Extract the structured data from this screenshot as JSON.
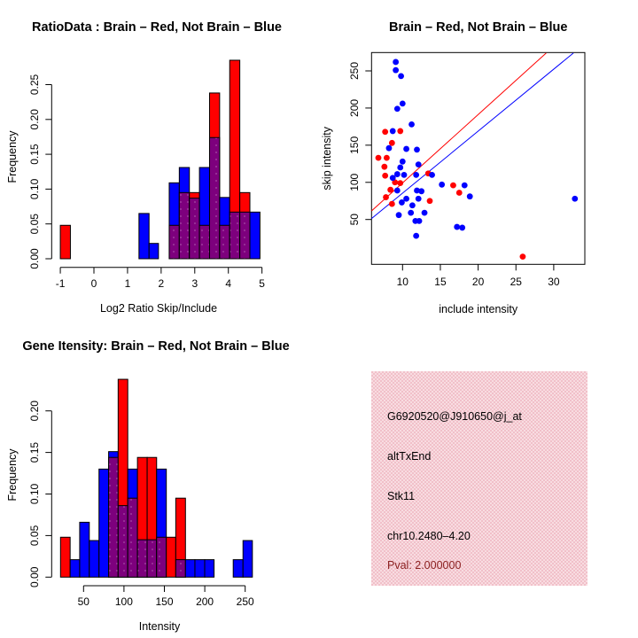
{
  "colors": {
    "red": "#ff0000",
    "blue": "#0000ff",
    "purple": "#7d007d",
    "purple_dot": "#a64ca6",
    "dark_red": "#8b2020",
    "black": "#000000",
    "pink_bg": "#f1c0c9",
    "pink_bg_light": "#f8dce1"
  },
  "chart_data": [
    {
      "id": "ratio_hist",
      "type": "bar",
      "title": "RatioData : Brain – Red, Not Brain – Blue",
      "xlabel": "Log2 Ratio Skip/Include",
      "ylabel": "Frequency",
      "xlim": [
        -1.27,
        5.25
      ],
      "ylim": [
        0,
        0.286
      ],
      "x_ticks": [
        {
          "v": -1,
          "label": "-1"
        },
        {
          "v": 0,
          "label": "0"
        },
        {
          "v": 1,
          "label": "1"
        },
        {
          "v": 2,
          "label": "2"
        },
        {
          "v": 3,
          "label": "3"
        },
        {
          "v": 4,
          "label": "4"
        },
        {
          "v": 5,
          "label": "5"
        }
      ],
      "y_ticks": [
        {
          "v": 0,
          "label": "0.00"
        },
        {
          "v": 0.05,
          "label": "0.05"
        },
        {
          "v": 0.1,
          "label": "0.10"
        },
        {
          "v": 0.15,
          "label": "0.15"
        },
        {
          "v": 0.2,
          "label": "0.20"
        },
        {
          "v": 0.25,
          "label": "0.25"
        }
      ],
      "series_legend": {
        "red": "Brain",
        "blue": "Not Brain",
        "purple": "overlap"
      },
      "bars": [
        {
          "x0": -1.0,
          "x1": -0.7,
          "series": "red",
          "height": 0.048,
          "overlap": 0
        },
        {
          "x0": 1.34,
          "x1": 1.64,
          "series": "blue",
          "height": 0.065,
          "overlap": 0
        },
        {
          "x0": 1.64,
          "x1": 1.92,
          "series": "blue",
          "height": 0.022,
          "overlap": 0
        },
        {
          "x0": 2.24,
          "x1": 2.54,
          "series": "blue",
          "height": 0.109,
          "overlap": 0.048
        },
        {
          "x0": 2.54,
          "x1": 2.84,
          "series": "blue",
          "height": 0.131,
          "overlap": 0.095
        },
        {
          "x0": 2.84,
          "x1": 3.14,
          "series": "red",
          "height": 0.095,
          "overlap": 0.087
        },
        {
          "x0": 3.14,
          "x1": 3.44,
          "series": "blue",
          "height": 0.131,
          "overlap": 0.048
        },
        {
          "x0": 3.44,
          "x1": 3.74,
          "series": "red",
          "height": 0.238,
          "overlap": 0.174
        },
        {
          "x0": 3.74,
          "x1": 4.04,
          "series": "blue",
          "height": 0.088,
          "overlap": 0.048
        },
        {
          "x0": 4.04,
          "x1": 4.34,
          "series": "red",
          "height": 0.285,
          "overlap": 0.067
        },
        {
          "x0": 4.34,
          "x1": 4.64,
          "series": "red",
          "height": 0.095,
          "overlap": 0.067
        },
        {
          "x0": 4.64,
          "x1": 4.94,
          "series": "blue",
          "height": 0.067,
          "overlap": 0
        }
      ]
    },
    {
      "id": "scatter",
      "type": "scatter",
      "title": "Brain – Red, Not Brain – Blue",
      "xlabel": "include intensity",
      "ylabel": "skip intensity",
      "xlim": [
        5.9,
        34.1
      ],
      "ylim": [
        -11.6,
        274
      ],
      "x_ticks": [
        {
          "v": 10,
          "label": "10"
        },
        {
          "v": 15,
          "label": "15"
        },
        {
          "v": 20,
          "label": "20"
        },
        {
          "v": 25,
          "label": "25"
        },
        {
          "v": 30,
          "label": "30"
        }
      ],
      "y_ticks": [
        {
          "v": 50,
          "label": "50"
        },
        {
          "v": 100,
          "label": "100"
        },
        {
          "v": 150,
          "label": "150"
        },
        {
          "v": 200,
          "label": "200"
        },
        {
          "v": 250,
          "label": "250"
        }
      ],
      "series": [
        {
          "name": "Brain",
          "color": "red",
          "points": [
            [
              7.7,
              168
            ],
            [
              9.7,
              169
            ],
            [
              8.6,
              153
            ],
            [
              6.8,
              133
            ],
            [
              7.9,
              133
            ],
            [
              7.6,
              121
            ],
            [
              7.7,
              109
            ],
            [
              13.4,
              112
            ],
            [
              9.0,
              100
            ],
            [
              9.7,
              99
            ],
            [
              16.7,
              96
            ],
            [
              8.4,
              90
            ],
            [
              17.5,
              86
            ],
            [
              7.8,
              80
            ],
            [
              13.6,
              75
            ],
            [
              8.6,
              71
            ],
            [
              25.9,
              0
            ]
          ]
        },
        {
          "name": "Not Brain",
          "color": "blue",
          "points": [
            [
              9.1,
              262
            ],
            [
              9.1,
              251
            ],
            [
              9.8,
              243
            ],
            [
              10.0,
              206
            ],
            [
              9.3,
              199
            ],
            [
              11.2,
              178
            ],
            [
              8.7,
              169
            ],
            [
              8.2,
              146
            ],
            [
              10.5,
              145
            ],
            [
              11.9,
              144
            ],
            [
              10.0,
              128
            ],
            [
              12.1,
              124
            ],
            [
              9.7,
              120
            ],
            [
              9.3,
              111
            ],
            [
              10.2,
              110
            ],
            [
              11.8,
              110
            ],
            [
              13.9,
              110
            ],
            [
              8.7,
              106
            ],
            [
              15.2,
              97
            ],
            [
              18.2,
              96
            ],
            [
              9.3,
              89
            ],
            [
              11.9,
              89
            ],
            [
              12.5,
              88
            ],
            [
              18.9,
              81
            ],
            [
              10.5,
              78
            ],
            [
              12.1,
              78
            ],
            [
              9.9,
              73
            ],
            [
              11.3,
              69
            ],
            [
              11.1,
              59
            ],
            [
              12.9,
              59
            ],
            [
              9.5,
              56
            ],
            [
              11.7,
              48
            ],
            [
              12.2,
              48
            ],
            [
              17.2,
              40
            ],
            [
              17.9,
              39
            ],
            [
              11.8,
              28
            ],
            [
              32.8,
              78
            ]
          ]
        }
      ],
      "lines": [
        {
          "color": "red",
          "from": [
            5.9,
            61.5
          ],
          "to": [
            29.0,
            274
          ]
        },
        {
          "color": "blue",
          "from": [
            5.9,
            51.3
          ],
          "to": [
            32.6,
            274
          ]
        }
      ]
    },
    {
      "id": "gene_hist",
      "type": "bar",
      "title": "Gene Itensity: Brain – Red, Not Brain – Blue",
      "xlabel": "Intensity",
      "ylabel": "Frequency",
      "xlim": [
        10,
        280
      ],
      "ylim": [
        0,
        0.254
      ],
      "x_ticks": [
        {
          "v": 50,
          "label": "50"
        },
        {
          "v": 100,
          "label": "100"
        },
        {
          "v": 150,
          "label": "150"
        },
        {
          "v": 200,
          "label": "200"
        },
        {
          "v": 250,
          "label": "250"
        }
      ],
      "y_ticks": [
        {
          "v": 0,
          "label": "0.00"
        },
        {
          "v": 0.05,
          "label": "0.05"
        },
        {
          "v": 0.1,
          "label": "0.10"
        },
        {
          "v": 0.15,
          "label": "0.15"
        },
        {
          "v": 0.2,
          "label": "0.20"
        }
      ],
      "series_legend": {
        "red": "Brain",
        "blue": "Not Brain",
        "purple": "overlap"
      },
      "bars": [
        {
          "x0": 21.5,
          "x1": 33.4,
          "series": "red",
          "height": 0.048,
          "overlap": 0
        },
        {
          "x0": 33.4,
          "x1": 45.2,
          "series": "blue",
          "height": 0.021,
          "overlap": 0
        },
        {
          "x0": 45.2,
          "x1": 57.1,
          "series": "blue",
          "height": 0.066,
          "overlap": 0
        },
        {
          "x0": 57.1,
          "x1": 69.1,
          "series": "blue",
          "height": 0.044,
          "overlap": 0
        },
        {
          "x0": 69.1,
          "x1": 81.0,
          "series": "blue",
          "height": 0.13,
          "overlap": 0
        },
        {
          "x0": 81.0,
          "x1": 92.8,
          "series": "blue",
          "height": 0.151,
          "overlap": 0.144
        },
        {
          "x0": 92.8,
          "x1": 104.7,
          "series": "red",
          "height": 0.238,
          "overlap": 0.086
        },
        {
          "x0": 104.7,
          "x1": 116.7,
          "series": "blue",
          "height": 0.13,
          "overlap": 0.095
        },
        {
          "x0": 116.7,
          "x1": 128.7,
          "series": "red",
          "height": 0.144,
          "overlap": 0.045
        },
        {
          "x0": 128.7,
          "x1": 140.4,
          "series": "red",
          "height": 0.144,
          "overlap": 0.045
        },
        {
          "x0": 140.4,
          "x1": 152.4,
          "series": "blue",
          "height": 0.13,
          "overlap": 0.048
        },
        {
          "x0": 152.4,
          "x1": 164.1,
          "series": "red",
          "height": 0.048,
          "overlap": 0
        },
        {
          "x0": 164.1,
          "x1": 176.1,
          "series": "red",
          "height": 0.095,
          "overlap": 0.021
        },
        {
          "x0": 176.1,
          "x1": 187.8,
          "series": "blue",
          "height": 0.021,
          "overlap": 0
        },
        {
          "x0": 187.8,
          "x1": 199.9,
          "series": "blue",
          "height": 0.021,
          "overlap": 0
        },
        {
          "x0": 199.9,
          "x1": 211.5,
          "series": "blue",
          "height": 0.021,
          "overlap": 0
        },
        {
          "x0": 235.2,
          "x1": 247.3,
          "series": "blue",
          "height": 0.021,
          "overlap": 0
        },
        {
          "x0": 247.3,
          "x1": 258.9,
          "series": "blue",
          "height": 0.044,
          "overlap": 0
        }
      ]
    }
  ],
  "info_panel": {
    "lines": [
      {
        "text": "G6920520@J910650@j_at",
        "color": "black"
      },
      {
        "text": "altTxEnd",
        "color": "black"
      },
      {
        "text": "Stk11",
        "color": "black"
      },
      {
        "text": "chr10.2480–4.20",
        "color": "black"
      },
      {
        "text": "Pval: 2.000000",
        "color": "dark_red"
      }
    ]
  }
}
